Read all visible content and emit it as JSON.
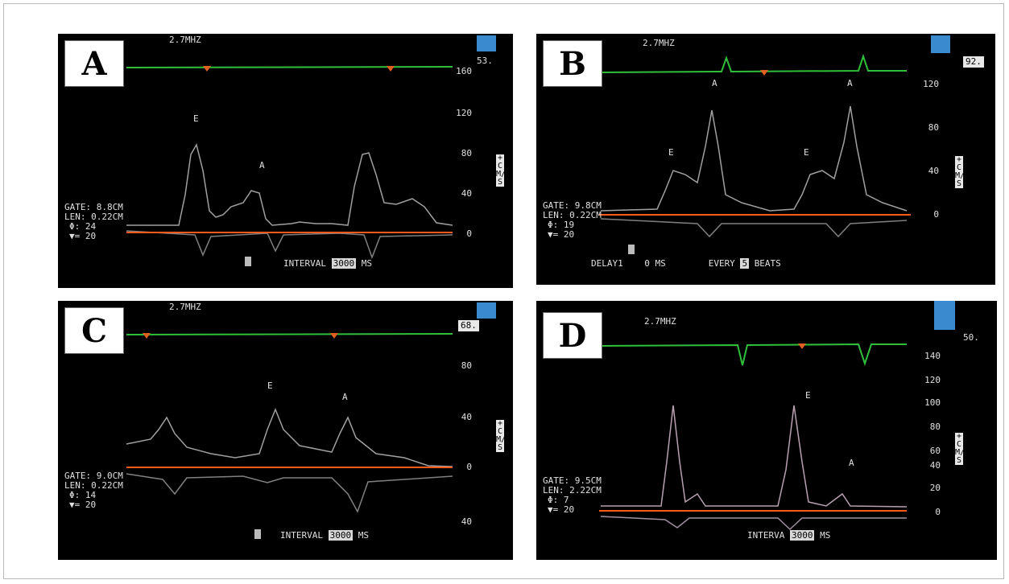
{
  "panels": [
    {
      "letter": "A",
      "freq": "2.7MHZ",
      "hr": "53.",
      "scale": [
        "160",
        "120",
        "80",
        "40",
        "0"
      ],
      "gate": "GATE:  8.8CM",
      "len": "LEN: 0.22CM",
      "phi": "Φ:  24",
      "vee": "▼= 20",
      "bottom_pre": "INTERVAL",
      "bottom_box": "3000",
      "bottom_post": "MS",
      "wave_labels": [
        "E",
        "A"
      ],
      "unit": "+CM/S"
    },
    {
      "letter": "B",
      "freq": "2.7MHZ",
      "hr": "92.",
      "scale": [
        "120",
        "80",
        "40",
        "0"
      ],
      "gate": "GATE:  9.8CM",
      "len": "LEN: 0.22CM",
      "phi": "Φ:  19",
      "vee": "▼= 20",
      "bottom_pre": "DELAY1    0 MS        EVERY",
      "bottom_box": "5",
      "bottom_post": "BEATS",
      "wave_labels": [
        "E",
        "A",
        "E",
        "A"
      ],
      "unit": "+CM/S"
    },
    {
      "letter": "C",
      "freq": "2.7MHZ",
      "hr": "68.",
      "scale": [
        "80",
        "40",
        "0",
        "40"
      ],
      "gate": "GATE:  9.0CM",
      "len": "LEN: 0.22CM",
      "phi": "Φ:  14",
      "vee": "▼= 20",
      "bottom_pre": "INTERVAL",
      "bottom_box": "3000",
      "bottom_post": "MS",
      "wave_labels": [
        "E",
        "A"
      ],
      "unit": "+CM/S"
    },
    {
      "letter": "D",
      "freq": "2.7MHZ",
      "hr": "50.",
      "scale": [
        "140",
        "120",
        "100",
        "80",
        "60",
        "40",
        "20",
        "0"
      ],
      "gate": "GATE:  9.5CM",
      "len": "LEN: 2.22CM",
      "phi": "Φ:  7",
      "vee": "▼= 20",
      "bottom_pre": "INTERVA",
      "bottom_box": "3000",
      "bottom_post": "MS",
      "wave_labels": [
        "E",
        "A"
      ],
      "unit": "+CM/S"
    }
  ]
}
